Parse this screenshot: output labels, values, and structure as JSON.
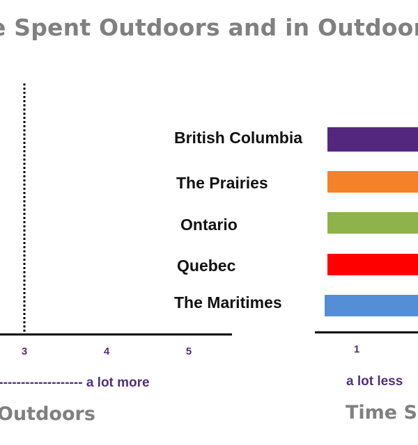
{
  "chart_data": {
    "type": "bar",
    "title": "e Spent Outdoors and in Outdoor Pla",
    "categories": [
      "British Columbia",
      "The Prairies",
      "Ontario",
      "Quebec",
      "The Maritimes"
    ],
    "colors": [
      "#54277f",
      "#f5812b",
      "#8fb34c",
      "#fe0000",
      "#548fd5"
    ],
    "left_panel": {
      "xlabel": "Outdoors",
      "ticks": [
        "3",
        "4",
        "5"
      ],
      "reference_line_x": 3,
      "scale_note": "-------------------- a lot more"
    },
    "right_panel": {
      "xlabel": "Time Sp",
      "ticks": [
        "1"
      ],
      "scale_note": "a lot less",
      "xmin": 1
    },
    "grid": false,
    "legend": "none"
  }
}
